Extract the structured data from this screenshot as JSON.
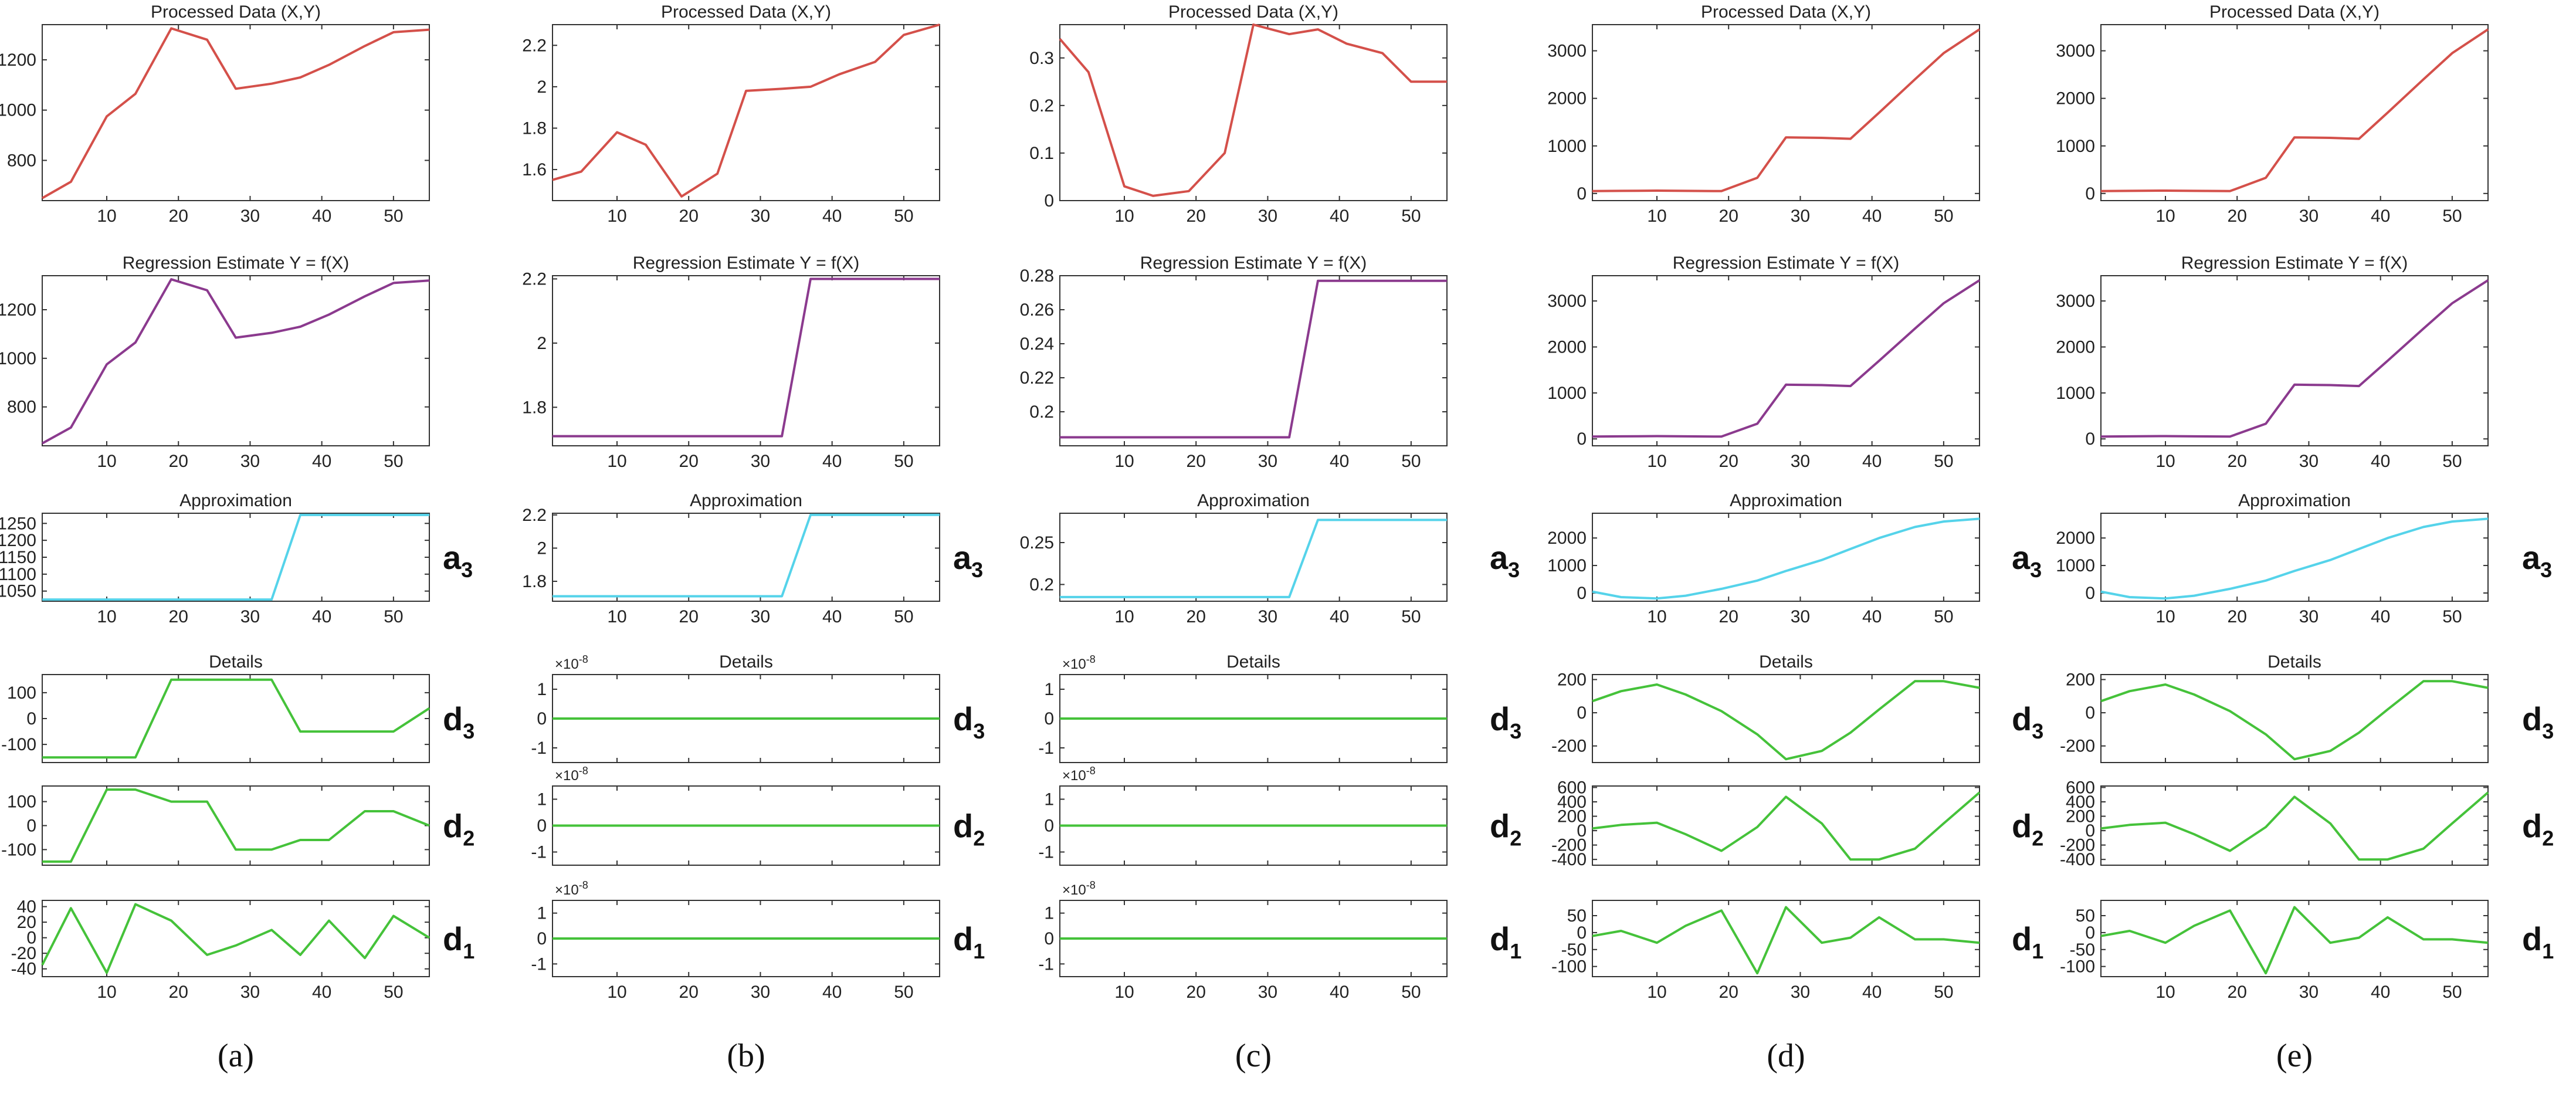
{
  "colors": {
    "processed": "#d4504a",
    "regression": "#8b3a8e",
    "approximation": "#55d3ea",
    "details": "#45c23a"
  },
  "chart_data": [
    {
      "panel": "a",
      "caption": "(a)",
      "x_ticks": [
        10,
        20,
        30,
        40,
        50
      ],
      "xlim": [
        1,
        55
      ],
      "processed": {
        "title": "Processed Data (X,Y)",
        "type": "line",
        "x": [
          1,
          5,
          10,
          14,
          19,
          24,
          28,
          33,
          37,
          41,
          46,
          50,
          55
        ],
        "y": [
          650,
          715,
          975,
          1065,
          1325,
          1280,
          1085,
          1105,
          1130,
          1180,
          1255,
          1310,
          1320
        ],
        "ylim": [
          640,
          1340
        ],
        "y_ticks": [
          800,
          1000,
          1200
        ]
      },
      "regression": {
        "title": "Regression Estimate Y = f(X)",
        "type": "line",
        "x": [
          1,
          5,
          10,
          14,
          19,
          24,
          28,
          33,
          37,
          41,
          46,
          50,
          55
        ],
        "y": [
          650,
          715,
          975,
          1065,
          1325,
          1280,
          1085,
          1105,
          1130,
          1180,
          1255,
          1310,
          1320
        ],
        "ylim": [
          640,
          1340
        ],
        "y_ticks": [
          800,
          1000,
          1200
        ]
      },
      "approximation": {
        "title": "Approximation",
        "label": "3",
        "type": "line",
        "x": [
          1,
          33,
          37,
          55
        ],
        "y": [
          1025,
          1025,
          1275,
          1275
        ],
        "ylim": [
          1020,
          1280
        ],
        "y_ticks": [
          1050,
          1100,
          1150,
          1200,
          1250
        ]
      },
      "details": [
        {
          "title": "Details",
          "label": "3",
          "type": "line",
          "x": [
            1,
            14,
            19,
            33,
            37,
            50,
            55
          ],
          "y": [
            -150,
            -150,
            150,
            150,
            -50,
            -50,
            40
          ],
          "ylim": [
            -170,
            170
          ],
          "y_ticks": [
            -100,
            0,
            100
          ]
        },
        {
          "label": "2",
          "type": "line",
          "x": [
            1,
            5,
            10,
            14,
            19,
            24,
            28,
            33,
            37,
            41,
            46,
            50,
            55
          ],
          "y": [
            -150,
            -150,
            150,
            150,
            100,
            100,
            -100,
            -100,
            -60,
            -60,
            60,
            60,
            0
          ],
          "ylim": [
            -165,
            165
          ],
          "y_ticks": [
            -100,
            0,
            100
          ]
        },
        {
          "label": "1",
          "type": "line",
          "x": [
            1,
            5,
            10,
            14,
            19,
            24,
            28,
            33,
            37,
            41,
            46,
            50,
            55
          ],
          "y": [
            -35,
            38,
            -45,
            43,
            22,
            -22,
            -10,
            10,
            -22,
            22,
            -26,
            28,
            0
          ],
          "ylim": [
            -50,
            48
          ],
          "y_ticks": [
            -40,
            -20,
            0,
            20,
            40
          ]
        }
      ]
    },
    {
      "panel": "b",
      "caption": "(b)",
      "x_ticks": [
        10,
        20,
        30,
        40,
        50
      ],
      "xlim": [
        1,
        55
      ],
      "processed": {
        "title": "Processed Data (X,Y)",
        "type": "line",
        "x": [
          1,
          5,
          10,
          14,
          19,
          24,
          28,
          33,
          37,
          41,
          46,
          50,
          55
        ],
        "y": [
          1.55,
          1.59,
          1.78,
          1.72,
          1.47,
          1.58,
          1.98,
          1.99,
          2.0,
          2.06,
          2.12,
          2.25,
          2.3
        ],
        "ylim": [
          1.45,
          2.3
        ],
        "y_ticks": [
          1.6,
          1.8,
          2,
          2.2
        ]
      },
      "regression": {
        "title": "Regression Estimate Y = f(X)",
        "type": "line",
        "x": [
          1,
          33,
          37,
          55
        ],
        "y": [
          1.71,
          1.71,
          2.2,
          2.2
        ],
        "ylim": [
          1.68,
          2.21
        ],
        "y_ticks": [
          1.8,
          2,
          2.2
        ]
      },
      "approximation": {
        "title": "Approximation",
        "label": "3",
        "type": "line",
        "x": [
          1,
          33,
          37,
          55
        ],
        "y": [
          1.71,
          1.71,
          2.2,
          2.2
        ],
        "ylim": [
          1.68,
          2.21
        ],
        "y_ticks": [
          1.8,
          2,
          2.2
        ]
      },
      "details": [
        {
          "title": "Details",
          "label": "3",
          "multiplier": "10",
          "multiplier_exp": "-8",
          "type": "line",
          "x": [
            1,
            55
          ],
          "y": [
            0,
            0
          ],
          "ylim": [
            -1.5,
            1.5
          ],
          "y_ticks": [
            -1,
            0,
            1
          ]
        },
        {
          "label": "2",
          "multiplier": "10",
          "multiplier_exp": "-8",
          "type": "line",
          "x": [
            1,
            55
          ],
          "y": [
            0,
            0
          ],
          "ylim": [
            -1.5,
            1.5
          ],
          "y_ticks": [
            -1,
            0,
            1
          ]
        },
        {
          "label": "1",
          "multiplier": "10",
          "multiplier_exp": "-8",
          "type": "line",
          "x": [
            1,
            55
          ],
          "y": [
            0,
            0
          ],
          "ylim": [
            -1.5,
            1.5
          ],
          "y_ticks": [
            -1,
            0,
            1
          ]
        }
      ]
    },
    {
      "panel": "c",
      "caption": "(c)",
      "x_ticks": [
        10,
        20,
        30,
        40,
        50
      ],
      "xlim": [
        1,
        55
      ],
      "processed": {
        "title": "Processed Data (X,Y)",
        "type": "line",
        "x": [
          1,
          5,
          10,
          14,
          19,
          24,
          28,
          33,
          37,
          41,
          46,
          50,
          55
        ],
        "y": [
          0.34,
          0.27,
          0.03,
          0.01,
          0.02,
          0.1,
          0.37,
          0.35,
          0.36,
          0.33,
          0.31,
          0.25,
          0.25
        ],
        "ylim": [
          0,
          0.37
        ],
        "y_ticks": [
          0,
          0.1,
          0.2,
          0.3
        ]
      },
      "regression": {
        "title": "Regression Estimate Y = f(X)",
        "type": "line",
        "x": [
          1,
          33,
          37,
          55
        ],
        "y": [
          0.185,
          0.185,
          0.277,
          0.277
        ],
        "ylim": [
          0.18,
          0.28
        ],
        "y_ticks": [
          0.2,
          0.22,
          0.24,
          0.26,
          0.28
        ]
      },
      "approximation": {
        "title": "Approximation",
        "label": "3",
        "type": "line",
        "x": [
          1,
          33,
          37,
          55
        ],
        "y": [
          0.185,
          0.185,
          0.277,
          0.277
        ],
        "ylim": [
          0.18,
          0.285
        ],
        "y_ticks": [
          0.2,
          0.25
        ]
      },
      "details": [
        {
          "title": "Details",
          "label": "3",
          "multiplier": "10",
          "multiplier_exp": "-8",
          "type": "line",
          "x": [
            1,
            55
          ],
          "y": [
            0,
            0
          ],
          "ylim": [
            -1.5,
            1.5
          ],
          "y_ticks": [
            -1,
            0,
            1
          ]
        },
        {
          "label": "2",
          "multiplier": "10",
          "multiplier_exp": "-8",
          "type": "line",
          "x": [
            1,
            55
          ],
          "y": [
            0,
            0
          ],
          "ylim": [
            -1.5,
            1.5
          ],
          "y_ticks": [
            -1,
            0,
            1
          ]
        },
        {
          "label": "1",
          "multiplier": "10",
          "multiplier_exp": "-8",
          "type": "line",
          "x": [
            1,
            55
          ],
          "y": [
            0,
            0
          ],
          "ylim": [
            -1.5,
            1.5
          ],
          "y_ticks": [
            -1,
            0,
            1
          ]
        }
      ]
    },
    {
      "panel": "d",
      "caption": "(d)",
      "x_ticks": [
        10,
        20,
        30,
        40,
        50
      ],
      "xlim": [
        1,
        55
      ],
      "processed": {
        "title": "Processed Data (X,Y)",
        "type": "line",
        "x": [
          1,
          5,
          10,
          14,
          19,
          24,
          28,
          33,
          37,
          41,
          46,
          50,
          55
        ],
        "y": [
          50,
          55,
          60,
          55,
          50,
          330,
          1180,
          1170,
          1150,
          1700,
          2400,
          2950,
          3450
        ],
        "ylim": [
          -150,
          3550
        ],
        "y_ticks": [
          0,
          1000,
          2000,
          3000
        ]
      },
      "regression": {
        "title": "Regression Estimate Y = f(X)",
        "type": "line",
        "x": [
          1,
          5,
          10,
          14,
          19,
          24,
          28,
          33,
          37,
          41,
          46,
          50,
          55
        ],
        "y": [
          50,
          55,
          60,
          55,
          50,
          330,
          1180,
          1170,
          1150,
          1700,
          2400,
          2950,
          3450
        ],
        "ylim": [
          -150,
          3550
        ],
        "y_ticks": [
          0,
          1000,
          2000,
          3000
        ]
      },
      "approximation": {
        "title": "Approximation",
        "label": "3",
        "type": "line",
        "x": [
          1,
          5,
          10,
          14,
          19,
          24,
          28,
          33,
          37,
          41,
          46,
          50,
          55
        ],
        "y": [
          50,
          -150,
          -200,
          -100,
          150,
          450,
          800,
          1200,
          1600,
          2000,
          2400,
          2600,
          2700
        ],
        "ylim": [
          -300,
          2900
        ],
        "y_ticks": [
          0,
          1000,
          2000
        ]
      },
      "details": [
        {
          "title": "Details",
          "label": "3",
          "type": "line",
          "x": [
            1,
            5,
            10,
            14,
            19,
            24,
            28,
            33,
            37,
            41,
            46,
            50,
            55
          ],
          "y": [
            70,
            130,
            170,
            110,
            10,
            -130,
            -280,
            -230,
            -120,
            20,
            190,
            190,
            150
          ],
          "ylim": [
            -300,
            230
          ],
          "y_ticks": [
            -200,
            0,
            200
          ]
        },
        {
          "label": "2",
          "type": "line",
          "x": [
            1,
            5,
            10,
            14,
            19,
            24,
            28,
            33,
            37,
            41,
            46,
            50,
            55
          ],
          "y": [
            30,
            80,
            110,
            -50,
            -280,
            50,
            470,
            100,
            -400,
            -400,
            -250,
            100,
            530
          ],
          "ylim": [
            -480,
            620
          ],
          "y_ticks": [
            -400,
            -200,
            0,
            200,
            400,
            600
          ]
        },
        {
          "label": "1",
          "type": "line",
          "x": [
            1,
            5,
            10,
            14,
            19,
            24,
            28,
            33,
            37,
            41,
            46,
            50,
            55
          ],
          "y": [
            -10,
            5,
            -30,
            20,
            65,
            -120,
            75,
            -30,
            -15,
            45,
            -20,
            -20,
            -30
          ],
          "ylim": [
            -130,
            95
          ],
          "y_ticks": [
            -100,
            -50,
            0,
            50
          ]
        }
      ]
    },
    {
      "panel": "e",
      "caption": "(e)",
      "x_ticks": [
        10,
        20,
        30,
        40,
        50
      ],
      "xlim": [
        1,
        55
      ],
      "processed": {
        "title": "Processed Data (X,Y)",
        "type": "line",
        "x": [
          1,
          5,
          10,
          14,
          19,
          24,
          28,
          33,
          37,
          41,
          46,
          50,
          55
        ],
        "y": [
          50,
          55,
          60,
          55,
          50,
          330,
          1180,
          1170,
          1150,
          1700,
          2400,
          2950,
          3450
        ],
        "ylim": [
          -150,
          3550
        ],
        "y_ticks": [
          0,
          1000,
          2000,
          3000
        ]
      },
      "regression": {
        "title": "Regression Estimate Y = f(X)",
        "type": "line",
        "x": [
          1,
          5,
          10,
          14,
          19,
          24,
          28,
          33,
          37,
          41,
          46,
          50,
          55
        ],
        "y": [
          50,
          55,
          60,
          55,
          50,
          330,
          1180,
          1170,
          1150,
          1700,
          2400,
          2950,
          3450
        ],
        "ylim": [
          -150,
          3550
        ],
        "y_ticks": [
          0,
          1000,
          2000,
          3000
        ]
      },
      "approximation": {
        "title": "Approximation",
        "label": "3",
        "type": "line",
        "x": [
          1,
          5,
          10,
          14,
          19,
          24,
          28,
          33,
          37,
          41,
          46,
          50,
          55
        ],
        "y": [
          50,
          -150,
          -200,
          -100,
          150,
          450,
          800,
          1200,
          1600,
          2000,
          2400,
          2600,
          2700
        ],
        "ylim": [
          -300,
          2900
        ],
        "y_ticks": [
          0,
          1000,
          2000
        ]
      },
      "details": [
        {
          "title": "Details",
          "label": "3",
          "type": "line",
          "x": [
            1,
            5,
            10,
            14,
            19,
            24,
            28,
            33,
            37,
            41,
            46,
            50,
            55
          ],
          "y": [
            70,
            130,
            170,
            110,
            10,
            -130,
            -280,
            -230,
            -120,
            20,
            190,
            190,
            150
          ],
          "ylim": [
            -300,
            230
          ],
          "y_ticks": [
            -200,
            0,
            200
          ]
        },
        {
          "label": "2",
          "type": "line",
          "x": [
            1,
            5,
            10,
            14,
            19,
            24,
            28,
            33,
            37,
            41,
            46,
            50,
            55
          ],
          "y": [
            30,
            80,
            110,
            -50,
            -280,
            50,
            470,
            100,
            -400,
            -400,
            -250,
            100,
            530
          ],
          "ylim": [
            -480,
            620
          ],
          "y_ticks": [
            -400,
            -200,
            0,
            200,
            400,
            600
          ]
        },
        {
          "label": "1",
          "type": "line",
          "x": [
            1,
            5,
            10,
            14,
            19,
            24,
            28,
            33,
            37,
            41,
            46,
            50,
            55
          ],
          "y": [
            -10,
            5,
            -30,
            20,
            65,
            -120,
            75,
            -30,
            -15,
            45,
            -20,
            -20,
            -30
          ],
          "ylim": [
            -130,
            95
          ],
          "y_ticks": [
            -100,
            -50,
            0,
            50
          ]
        }
      ]
    }
  ]
}
